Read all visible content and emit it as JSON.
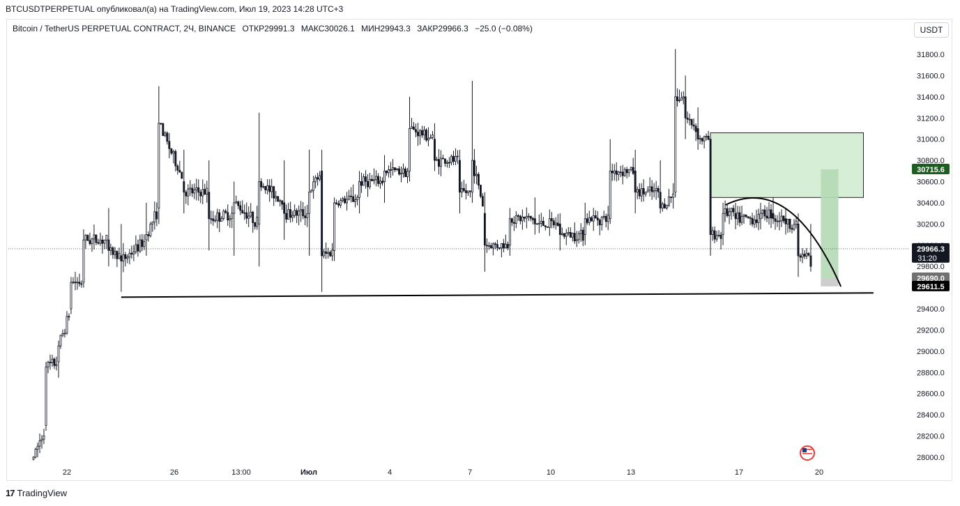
{
  "header": {
    "publish_line": "BTCUSDTPERPETUAL опубликовал(а) на TradingView.com, Июл 19, 2023 14:28 UTC+3"
  },
  "legend": {
    "symbol": "Bitcoin / TetherUS PERPETUAL CONTRACT, 2Ч, BINANCE",
    "open_label": "ОТКР",
    "open": "29991.3",
    "high_label": "МАКС",
    "high": "30026.1",
    "low_label": "МИН",
    "low": "29943.3",
    "close_label": "ЗАКР",
    "close": "29966.3",
    "change": "−25.0 (−0.08%)"
  },
  "currency_button": "USDT",
  "footer": {
    "brand": "TradingView"
  },
  "colors": {
    "up": "#ffffff",
    "down": "#131722",
    "zone_fill": "#d5eed5",
    "zone_border": "#222222",
    "target_fill": "#b5d9b5",
    "stop_fill": "#c9c9c9",
    "label_green": "#1b5e20",
    "label_dark": "#131722",
    "label_grey": "#707070"
  },
  "chart_data": {
    "type": "candlestick",
    "timeframe": "2Ч",
    "y_axis": {
      "ticks": [
        "31800.0",
        "31600.0",
        "31400.0",
        "31200.0",
        "31000.0",
        "30800.0",
        "30600.0",
        "30400.0",
        "30200.0",
        "30000.0",
        "29800.0",
        "29600.0",
        "29400.0",
        "29200.0",
        "29000.0",
        "28800.0",
        "28600.0",
        "28400.0",
        "28200.0",
        "28000.0"
      ],
      "range": [
        27950,
        31900
      ]
    },
    "x_axis": {
      "ticks": [
        "22",
        "26",
        "13:00",
        "Июл",
        "4",
        "7",
        "10",
        "13",
        "17",
        "20"
      ]
    },
    "price_labels": [
      {
        "text": "30715.6",
        "value": 30715.6,
        "style": "green"
      },
      {
        "text": "29966.3",
        "sub": "31:20",
        "value": 29966.3,
        "style": "dark"
      },
      {
        "text": "29690.0",
        "value": 29690.0,
        "style": "grey"
      },
      {
        "text": "29611.5",
        "value": 29611.5,
        "style": "black"
      }
    ],
    "current_price": 29966.3,
    "anchor_candles": [
      {
        "day": 19.0,
        "open": 27980,
        "high": 28010,
        "low": 27970,
        "close": 28000
      },
      {
        "day": 19.5,
        "open": 28300,
        "high": 28900,
        "low": 28250,
        "close": 28850
      },
      {
        "day": 20.0,
        "open": 28900,
        "high": 29100,
        "low": 28750,
        "close": 29050
      },
      {
        "day": 20.5,
        "open": 29400,
        "high": 29700,
        "low": 29350,
        "close": 29650
      },
      {
        "day": 21.0,
        "open": 29650,
        "high": 30150,
        "low": 29600,
        "close": 30050
      },
      {
        "day": 22.0,
        "open": 30050,
        "high": 30350,
        "low": 29800,
        "close": 29950
      },
      {
        "day": 22.5,
        "open": 29900,
        "high": 30200,
        "low": 29560,
        "close": 29850
      },
      {
        "day": 23.5,
        "open": 30050,
        "high": 30400,
        "low": 29900,
        "close": 30100
      },
      {
        "day": 24.0,
        "open": 30350,
        "high": 31500,
        "low": 30200,
        "close": 31150
      },
      {
        "day": 25.0,
        "open": 30600,
        "high": 30900,
        "low": 30300,
        "close": 30500
      },
      {
        "day": 26.0,
        "open": 30500,
        "high": 30800,
        "low": 29950,
        "close": 30250
      },
      {
        "day": 27.0,
        "open": 30300,
        "high": 30600,
        "low": 29900,
        "close": 30400
      },
      {
        "day": 28.0,
        "open": 30200,
        "high": 31250,
        "low": 29800,
        "close": 30600
      },
      {
        "day": 29.0,
        "open": 30400,
        "high": 30800,
        "low": 30050,
        "close": 30300
      },
      {
        "day": 30.0,
        "open": 30300,
        "high": 30900,
        "low": 29900,
        "close": 30500
      },
      {
        "day": 30.5,
        "open": 30700,
        "high": 30900,
        "low": 29560,
        "close": 29900
      },
      {
        "day": 31.0,
        "open": 29950,
        "high": 30450,
        "low": 29850,
        "close": 30400
      },
      {
        "day": 32.0,
        "open": 30450,
        "high": 30700,
        "low": 30300,
        "close": 30600
      },
      {
        "day": 33.0,
        "open": 30600,
        "high": 30850,
        "low": 30400,
        "close": 30700
      },
      {
        "day": 34.0,
        "open": 30700,
        "high": 31400,
        "low": 30600,
        "close": 31100
      },
      {
        "day": 35.0,
        "open": 31000,
        "high": 31150,
        "low": 30700,
        "close": 30800
      },
      {
        "day": 36.0,
        "open": 30800,
        "high": 30900,
        "low": 30300,
        "close": 30500
      },
      {
        "day": 36.5,
        "open": 30500,
        "high": 31550,
        "low": 30400,
        "close": 30800
      },
      {
        "day": 37.0,
        "open": 30300,
        "high": 30500,
        "low": 29750,
        "close": 30000
      },
      {
        "day": 38.0,
        "open": 30000,
        "high": 30350,
        "low": 29900,
        "close": 30250
      },
      {
        "day": 39.0,
        "open": 30250,
        "high": 30450,
        "low": 30100,
        "close": 30200
      },
      {
        "day": 40.0,
        "open": 30200,
        "high": 30300,
        "low": 29950,
        "close": 30100
      },
      {
        "day": 41.0,
        "open": 30100,
        "high": 30400,
        "low": 30000,
        "close": 30250
      },
      {
        "day": 42.0,
        "open": 30250,
        "high": 31000,
        "low": 30200,
        "close": 30700
      },
      {
        "day": 43.0,
        "open": 30700,
        "high": 30900,
        "low": 30300,
        "close": 30500
      },
      {
        "day": 44.0,
        "open": 30500,
        "high": 30800,
        "low": 30300,
        "close": 30350
      },
      {
        "day": 44.6,
        "open": 30500,
        "high": 31850,
        "low": 30450,
        "close": 31400
      },
      {
        "day": 45.0,
        "open": 31400,
        "high": 31600,
        "low": 31000,
        "close": 31200
      },
      {
        "day": 45.5,
        "open": 31100,
        "high": 31300,
        "low": 30900,
        "close": 31000
      },
      {
        "day": 46.0,
        "open": 31000,
        "high": 31000,
        "low": 29900,
        "close": 30100
      },
      {
        "day": 46.5,
        "open": 30100,
        "high": 30400,
        "low": 30000,
        "close": 30300
      },
      {
        "day": 47.0,
        "open": 30300,
        "high": 30400,
        "low": 30150,
        "close": 30250
      },
      {
        "day": 48.0,
        "open": 30250,
        "high": 30400,
        "low": 30150,
        "close": 30300
      },
      {
        "day": 48.5,
        "open": 30300,
        "high": 30450,
        "low": 30200,
        "close": 30250
      },
      {
        "day": 49.0,
        "open": 30250,
        "high": 30350,
        "low": 30100,
        "close": 30200
      },
      {
        "day": 49.5,
        "open": 30200,
        "high": 30300,
        "low": 29700,
        "close": 29900
      },
      {
        "day": 50.0,
        "open": 29900,
        "high": 30200,
        "low": 29750,
        "close": 29800
      },
      {
        "day": 50.3,
        "open": 29800,
        "high": 29850,
        "low": 29400,
        "close": 29700
      },
      {
        "day": 50.5,
        "open": 29700,
        "high": 29950,
        "low": 29650,
        "close": 29880
      },
      {
        "day": 51.0,
        "open": 29880,
        "high": 30180,
        "low": 29850,
        "close": 29966.3
      }
    ],
    "annotations": {
      "support_line": {
        "start": {
          "day": 22.5,
          "value": 29510
        },
        "end": {
          "day": 52.5,
          "value": 29550
        }
      },
      "supply_zone": {
        "start_day": 46.0,
        "end_day": 52.1,
        "top": 31060,
        "bottom": 30450
      },
      "arc": {
        "start": {
          "day": 46.6,
          "value": 30380
        },
        "peak": {
          "day": 49.2,
          "value": 30450
        },
        "end": {
          "day": 51.2,
          "value": 29610
        }
      },
      "target_box": {
        "start_day": 50.4,
        "end_day": 51.1,
        "top": 30715.6,
        "bottom": 29690
      },
      "stop_box": {
        "start_day": 50.4,
        "end_day": 51.1,
        "top": 29690,
        "bottom": 29611.5
      }
    }
  }
}
